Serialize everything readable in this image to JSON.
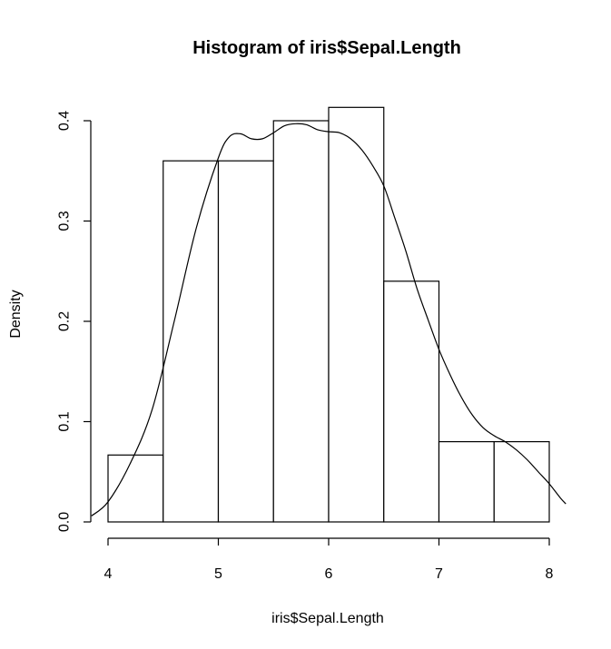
{
  "chart_data": {
    "type": "bar",
    "title": "Histogram of iris$Sepal.Length",
    "xlabel": "iris$Sepal.Length",
    "ylabel": "Density",
    "xlim": [
      3.85,
      8.15
    ],
    "ylim": [
      0,
      0.4133
    ],
    "x_ticks": [
      4,
      5,
      6,
      7,
      8
    ],
    "y_ticks": [
      0.0,
      0.1,
      0.2,
      0.3,
      0.4
    ],
    "bins": [
      {
        "from": 4.0,
        "to": 4.5,
        "density": 0.0667
      },
      {
        "from": 4.5,
        "to": 5.0,
        "density": 0.36
      },
      {
        "from": 5.0,
        "to": 5.5,
        "density": 0.36
      },
      {
        "from": 5.5,
        "to": 6.0,
        "density": 0.4
      },
      {
        "from": 6.0,
        "to": 6.5,
        "density": 0.4133
      },
      {
        "from": 6.5,
        "to": 7.0,
        "density": 0.24
      },
      {
        "from": 7.0,
        "to": 7.5,
        "density": 0.08
      },
      {
        "from": 7.5,
        "to": 8.0,
        "density": 0.08
      }
    ],
    "density_curve": {
      "x": [
        3.85,
        4.0,
        4.2,
        4.4,
        4.6,
        4.8,
        5.0,
        5.1,
        5.2,
        5.3,
        5.4,
        5.5,
        5.6,
        5.7,
        5.8,
        5.9,
        6.0,
        6.1,
        6.2,
        6.3,
        6.4,
        6.5,
        6.6,
        6.7,
        6.8,
        6.9,
        7.0,
        7.1,
        7.2,
        7.3,
        7.4,
        7.5,
        7.6,
        7.7,
        7.8,
        7.9,
        8.0,
        8.1,
        8.15
      ],
      "y": [
        0.006,
        0.02,
        0.058,
        0.112,
        0.2,
        0.293,
        0.363,
        0.384,
        0.387,
        0.382,
        0.382,
        0.388,
        0.395,
        0.397,
        0.396,
        0.391,
        0.389,
        0.388,
        0.382,
        0.371,
        0.355,
        0.335,
        0.303,
        0.27,
        0.233,
        0.202,
        0.172,
        0.147,
        0.125,
        0.107,
        0.094,
        0.086,
        0.08,
        0.072,
        0.062,
        0.05,
        0.038,
        0.024,
        0.018
      ]
    },
    "grid": false,
    "legend": "none"
  }
}
